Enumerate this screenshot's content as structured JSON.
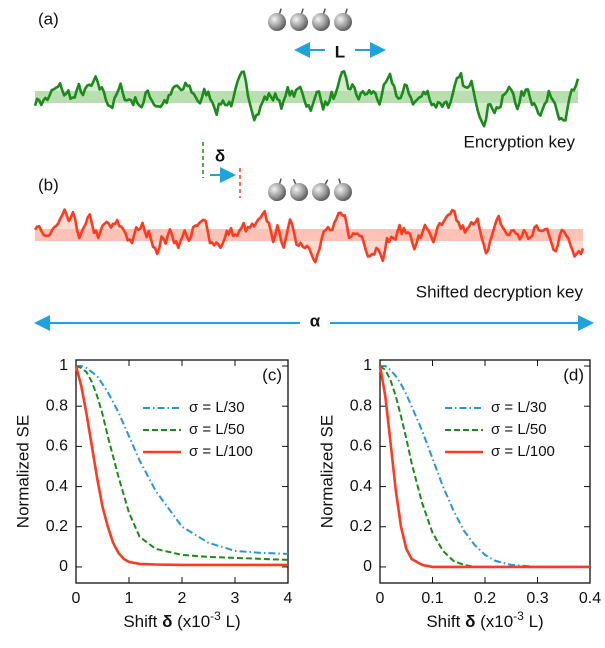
{
  "diagram": {
    "panel_a": "(a)",
    "panel_b": "(b)",
    "length_symbol": "L",
    "shift_symbol": "δ",
    "alpha_symbol": "α",
    "key_a": "Encryption key",
    "key_b": "Shifted decryption key"
  },
  "chart_data": [
    {
      "type": "line",
      "panel_label": "(c)",
      "ylabel": "Normalized SE",
      "xlabel": [
        "Shift ",
        "δ",
        " (x10",
        "-3",
        " L)"
      ],
      "x": [
        0,
        0.1,
        0.2,
        0.3,
        0.4,
        0.5,
        0.6,
        0.7,
        0.8,
        0.9,
        1.0,
        1.2,
        1.5,
        2,
        2.5,
        3,
        3.5,
        4
      ],
      "xlim": [
        0,
        4
      ],
      "xticks": [
        0,
        1,
        2,
        3,
        4
      ],
      "ylim": [
        -0.08,
        1.03
      ],
      "yticks": [
        0,
        0.2,
        0.4,
        0.6,
        0.8,
        1
      ],
      "legend": "upper right",
      "series": [
        {
          "name": "σ = L/30",
          "color": "#2a93de",
          "dash": "dashdot",
          "values": [
            1,
            1,
            0.99,
            0.97,
            0.95,
            0.91,
            0.87,
            0.82,
            0.77,
            0.71,
            0.65,
            0.53,
            0.38,
            0.2,
            0.12,
            0.08,
            0.07,
            0.065
          ]
        },
        {
          "name": "σ = L/50",
          "color": "#1c8a1c",
          "dash": "dashed",
          "values": [
            1,
            0.99,
            0.97,
            0.92,
            0.85,
            0.76,
            0.65,
            0.55,
            0.45,
            0.36,
            0.27,
            0.15,
            0.09,
            0.06,
            0.05,
            0.045,
            0.04,
            0.035
          ]
        },
        {
          "name": "σ = L/100",
          "color": "#ff3b1f",
          "dash": "solid",
          "values": [
            1,
            0.9,
            0.76,
            0.6,
            0.44,
            0.3,
            0.2,
            0.12,
            0.07,
            0.04,
            0.025,
            0.015,
            0.012,
            0.01,
            0.01,
            0.01,
            0.01,
            0.01
          ]
        }
      ]
    },
    {
      "type": "line",
      "panel_label": "(d)",
      "ylabel": "Normalized SE",
      "xlabel": [
        "Shift ",
        "δ",
        " (x10",
        "-3",
        " L)"
      ],
      "x": [
        0,
        0.01,
        0.02,
        0.03,
        0.04,
        0.05,
        0.06,
        0.08,
        0.1,
        0.12,
        0.14,
        0.16,
        0.18,
        0.2,
        0.22,
        0.25,
        0.3,
        0.35,
        0.4
      ],
      "xlim": [
        0,
        0.4
      ],
      "xticks": [
        0,
        0.1,
        0.2,
        0.3,
        0.4
      ],
      "ylim": [
        -0.08,
        1.03
      ],
      "yticks": [
        0,
        0.2,
        0.4,
        0.6,
        0.8,
        1
      ],
      "legend": "upper right",
      "series": [
        {
          "name": "σ = L/30",
          "color": "#2a93de",
          "dash": "dashdot",
          "values": [
            1,
            1,
            0.98,
            0.95,
            0.91,
            0.86,
            0.8,
            0.68,
            0.54,
            0.4,
            0.28,
            0.18,
            0.11,
            0.06,
            0.03,
            0.01,
            0,
            0,
            0
          ]
        },
        {
          "name": "σ = L/50",
          "color": "#1c8a1c",
          "dash": "dashed",
          "values": [
            1,
            0.98,
            0.93,
            0.85,
            0.75,
            0.64,
            0.52,
            0.32,
            0.17,
            0.08,
            0.03,
            0.01,
            0,
            0,
            0,
            0,
            0,
            0,
            0
          ]
        },
        {
          "name": "σ = L/100",
          "color": "#ff3b1f",
          "dash": "solid",
          "values": [
            1,
            0.85,
            0.62,
            0.38,
            0.2,
            0.09,
            0.04,
            0.01,
            0,
            0,
            0,
            0,
            0,
            0,
            0,
            0,
            0,
            0,
            0
          ]
        }
      ]
    }
  ]
}
